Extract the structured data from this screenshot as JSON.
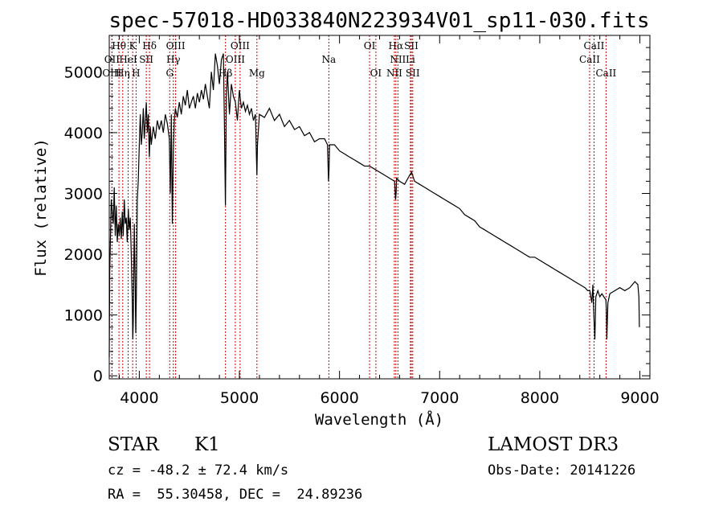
{
  "chart_data": {
    "type": "line",
    "title": "spec-57018-HD033840N223934V01_sp11-030.fits",
    "xlabel": "Wavelength (Å)",
    "ylabel": "Flux (relative)",
    "xlim": [
      3700,
      9100
    ],
    "ylim": [
      -50,
      5600
    ],
    "x_ticks": [
      4000,
      5000,
      6000,
      7000,
      8000,
      9000
    ],
    "y_ticks": [
      0,
      1000,
      2000,
      3000,
      4000,
      5000
    ],
    "series": [
      {
        "name": "flux",
        "x": [
          3700,
          3705,
          3720,
          3740,
          3750,
          3760,
          3770,
          3780,
          3790,
          3800,
          3810,
          3820,
          3830,
          3840,
          3850,
          3860,
          3870,
          3880,
          3890,
          3900,
          3910,
          3920,
          3930,
          3935,
          3940,
          3950,
          3960,
          3965,
          3970,
          3980,
          3990,
          4000,
          4010,
          4020,
          4030,
          4040,
          4050,
          4060,
          4070,
          4080,
          4090,
          4100,
          4110,
          4120,
          4140,
          4160,
          4180,
          4200,
          4220,
          4240,
          4260,
          4280,
          4300,
          4310,
          4320,
          4330,
          4340,
          4350,
          4360,
          4380,
          4400,
          4420,
          4440,
          4460,
          4480,
          4500,
          4520,
          4540,
          4560,
          4580,
          4600,
          4620,
          4640,
          4660,
          4680,
          4700,
          4720,
          4740,
          4760,
          4780,
          4800,
          4820,
          4840,
          4850,
          4860,
          4870,
          4880,
          4900,
          4920,
          4940,
          4960,
          4980,
          5000,
          5020,
          5040,
          5060,
          5080,
          5100,
          5120,
          5140,
          5160,
          5170,
          5175,
          5180,
          5200,
          5250,
          5300,
          5350,
          5400,
          5450,
          5500,
          5550,
          5600,
          5650,
          5700,
          5750,
          5800,
          5850,
          5880,
          5890,
          5895,
          5900,
          5950,
          6000,
          6050,
          6100,
          6150,
          6200,
          6250,
          6300,
          6350,
          6400,
          6450,
          6500,
          6550,
          6560,
          6565,
          6570,
          6600,
          6650,
          6700,
          6720,
          6750,
          6800,
          6850,
          6900,
          6950,
          7000,
          7050,
          7100,
          7150,
          7200,
          7250,
          7300,
          7350,
          7400,
          7450,
          7500,
          7550,
          7600,
          7650,
          7700,
          7750,
          7800,
          7850,
          7900,
          7950,
          8000,
          8050,
          8100,
          8150,
          8200,
          8250,
          8300,
          8350,
          8400,
          8450,
          8480,
          8500,
          8520,
          8530,
          8540,
          8550,
          8560,
          8580,
          8600,
          8620,
          8640,
          8660,
          8665,
          8670,
          8680,
          8700,
          8750,
          8800,
          8850,
          8900,
          8950,
          8980,
          8990,
          8995
        ],
        "y": [
          300,
          1700,
          2900,
          2500,
          3100,
          2300,
          2800,
          2200,
          2500,
          2300,
          2600,
          2250,
          2700,
          2300,
          2900,
          2500,
          2600,
          2200,
          2750,
          2400,
          2600,
          2000,
          1200,
          600,
          900,
          2500,
          1400,
          700,
          1300,
          2900,
          3200,
          3800,
          4300,
          3800,
          4000,
          4400,
          3900,
          4200,
          4500,
          4000,
          4300,
          3600,
          4100,
          3800,
          4100,
          3900,
          4200,
          4050,
          4200,
          4000,
          4300,
          4150,
          3900,
          3000,
          4300,
          2500,
          3700,
          4200,
          4400,
          4250,
          4500,
          4300,
          4600,
          4450,
          4700,
          4400,
          4500,
          4600,
          4400,
          4650,
          4500,
          4700,
          4550,
          4800,
          4600,
          4400,
          5000,
          4700,
          5300,
          5100,
          4800,
          5200,
          5300,
          4200,
          2800,
          4600,
          5000,
          4300,
          4800,
          4600,
          4500,
          4200,
          4700,
          4400,
          4500,
          4350,
          4450,
          4300,
          4400,
          4200,
          4300,
          3600,
          3300,
          3800,
          4300,
          4250,
          4400,
          4200,
          4300,
          4100,
          4200,
          4050,
          4100,
          3950,
          4000,
          3850,
          3900,
          3900,
          3800,
          3200,
          3400,
          3800,
          3800,
          3700,
          3650,
          3600,
          3550,
          3500,
          3450,
          3450,
          3400,
          3350,
          3300,
          3250,
          3200,
          2900,
          3000,
          3250,
          3200,
          3150,
          3300,
          3350,
          3200,
          3150,
          3100,
          3050,
          3000,
          2950,
          2900,
          2850,
          2800,
          2750,
          2650,
          2600,
          2550,
          2450,
          2400,
          2350,
          2300,
          2250,
          2200,
          2150,
          2100,
          2050,
          2000,
          1950,
          1950,
          1900,
          1850,
          1800,
          1750,
          1700,
          1650,
          1600,
          1550,
          1500,
          1450,
          1400,
          1400,
          1200,
          1500,
          1000,
          600,
          1300,
          1400,
          1300,
          1350,
          1300,
          1250,
          1100,
          600,
          1200,
          1350,
          1400,
          1450,
          1400,
          1450,
          1550,
          1500,
          1300,
          800
        ]
      }
    ],
    "spectral_lines": [
      {
        "name": "Hθ",
        "x": 3797,
        "row": 0
      },
      {
        "name": "K",
        "x": 3934,
        "row": 0
      },
      {
        "name": "Hδ",
        "x": 4102,
        "row": 0
      },
      {
        "name": "OIII",
        "x": 4363,
        "row": 0
      },
      {
        "name": "OIII",
        "x": 5007,
        "row": 0
      },
      {
        "name": "OI",
        "x": 6300,
        "row": 0
      },
      {
        "name": "Hα",
        "x": 6563,
        "row": 0
      },
      {
        "name": "SII",
        "x": 6717,
        "row": 0
      },
      {
        "name": "CaII",
        "x": 8542,
        "row": 0
      },
      {
        "name": "OII",
        "x": 3727,
        "row": 1
      },
      {
        "name": "HeI",
        "x": 3889,
        "row": 1
      },
      {
        "name": "SII",
        "x": 4070,
        "row": 1
      },
      {
        "name": "Hγ",
        "x": 4340,
        "row": 1
      },
      {
        "name": "OIII",
        "x": 4959,
        "row": 1
      },
      {
        "name": "Na",
        "x": 5893,
        "row": 1
      },
      {
        "name": "NII",
        "x": 6583,
        "row": 1
      },
      {
        "name": "Li",
        "x": 6708,
        "row": 1
      },
      {
        "name": "CaII",
        "x": 8498,
        "row": 1
      },
      {
        "name": "OIII",
        "x": 3727,
        "row": 2
      },
      {
        "name": "Hη",
        "x": 3835,
        "row": 2
      },
      {
        "name": "H",
        "x": 3968,
        "row": 2
      },
      {
        "name": "G",
        "x": 4304,
        "row": 2
      },
      {
        "name": "Hβ",
        "x": 4861,
        "row": 2
      },
      {
        "name": "Mg",
        "x": 5175,
        "row": 2
      },
      {
        "name": "OI",
        "x": 6363,
        "row": 2
      },
      {
        "name": "NII",
        "x": 6548,
        "row": 2
      },
      {
        "name": "SII",
        "x": 6731,
        "row": 2
      },
      {
        "name": "CaII",
        "x": 8662,
        "row": 2
      }
    ],
    "line_marker_color": "#cc0000"
  },
  "info": {
    "object_class": "STAR",
    "subclass": "K1",
    "survey": "LAMOST DR3",
    "redshift": "cz = -48.2 ± 72.4 km/s",
    "obs_date": "Obs-Date: 20141226",
    "coords": "RA =  55.30458, DEC =  24.89236"
  }
}
